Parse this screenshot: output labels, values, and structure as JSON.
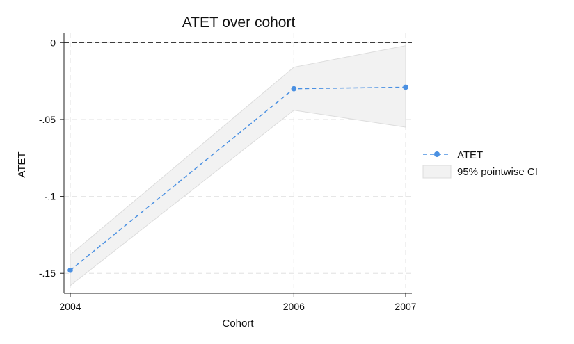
{
  "chart_data": {
    "type": "line",
    "title": "ATET over cohort",
    "xlabel": "Cohort",
    "ylabel": "ATET",
    "x_ticks": [
      "2004",
      "2006",
      "2007"
    ],
    "y_ticks": [
      "0",
      "-.05",
      "-.1",
      "-.15"
    ],
    "xlim": [
      2004,
      2007
    ],
    "ylim": [
      -0.163,
      0.006
    ],
    "grid": true,
    "reference_line": {
      "y": 0,
      "style": "dashed"
    },
    "legend_position": "right",
    "series": [
      {
        "name": "ATET",
        "x": [
          2004,
          2006,
          2007
        ],
        "values": [
          -0.148,
          -0.03,
          -0.029
        ],
        "color": "#4a90e2",
        "style": "dashed-with-markers"
      }
    ],
    "ci_band": {
      "name": "95% pointwise CI",
      "x": [
        2004,
        2006,
        2007
      ],
      "lower": [
        -0.158,
        -0.044,
        -0.055
      ],
      "upper": [
        -0.138,
        -0.016,
        -0.002
      ],
      "fill": "#f2f2f2",
      "stroke": "#dcdcdc"
    }
  }
}
